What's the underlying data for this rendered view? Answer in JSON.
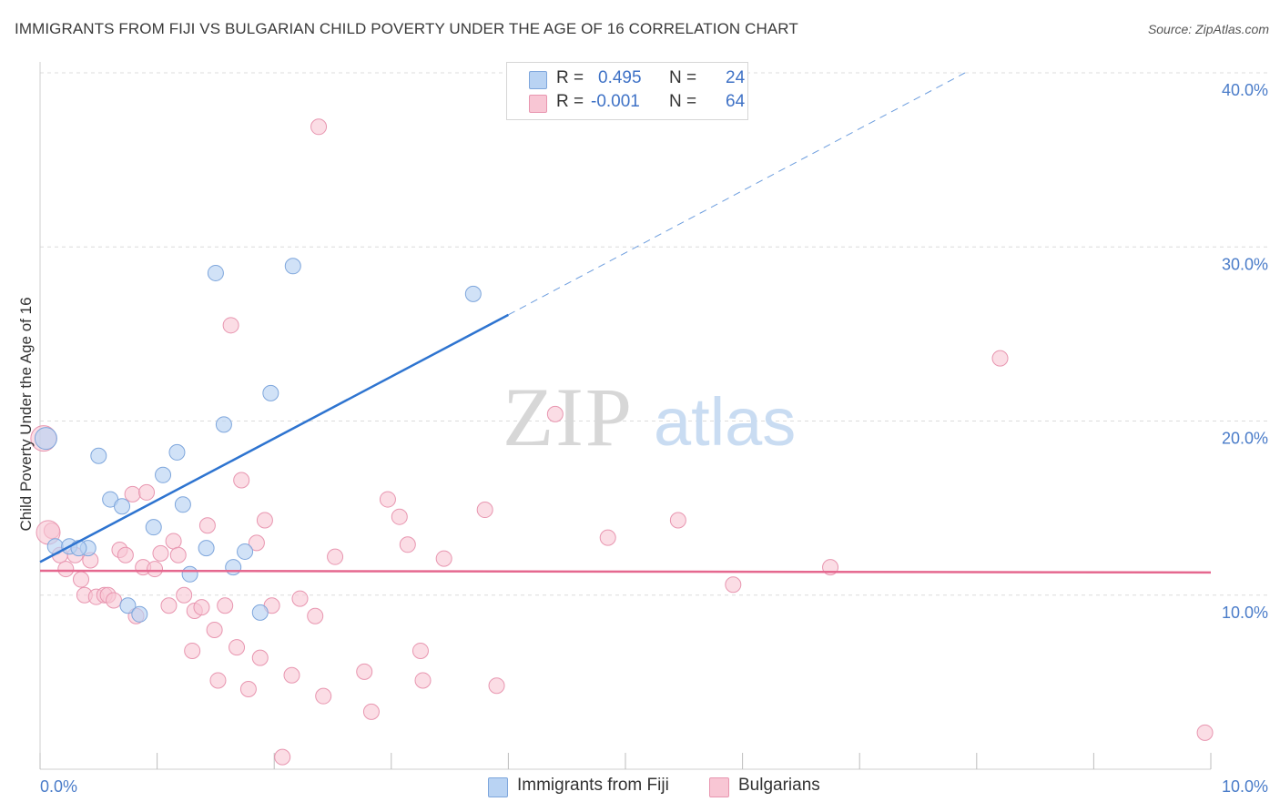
{
  "title": "IMMIGRANTS FROM FIJI VS BULGARIAN CHILD POVERTY UNDER THE AGE OF 16 CORRELATION CHART",
  "source": "Source: ZipAtlas.com",
  "watermark": {
    "zip": "ZIP",
    "atlas": "atlas"
  },
  "legend": {
    "fiji": {
      "r_label": "R =",
      "r_value": "0.495",
      "n_label": "N =",
      "n_value": "24"
    },
    "bulgarians": {
      "r_label": "R =",
      "r_value": "-0.001",
      "n_label": "N =",
      "n_value": "64"
    }
  },
  "bottom_legend": {
    "fiji": "Immigrants from Fiji",
    "bulgarians": "Bulgarians"
  },
  "colors": {
    "fiji_fill": "#b9d3f3",
    "fiji_stroke": "#7ea6dc",
    "fiji_line": "#2e74d0",
    "bulg_fill": "#f8c6d4",
    "bulg_stroke": "#e896b0",
    "bulg_line": "#e5688f",
    "grid": "#dcdcdc",
    "axis_text": "#4a7cc9"
  },
  "chart_data": {
    "type": "scatter",
    "title": "IMMIGRANTS FROM FIJI VS BULGARIAN CHILD POVERTY UNDER THE AGE OF 16 CORRELATION CHART",
    "xlabel": "",
    "ylabel": "Child Poverty Under the Age of 16",
    "xlim": [
      0,
      10
    ],
    "ylim": [
      0,
      40
    ],
    "x_tick_labels": [
      "0.0%",
      "10.0%"
    ],
    "y_ticks": [
      10,
      20,
      30,
      40
    ],
    "y_tick_labels": [
      "10.0%",
      "20.0%",
      "30.0%",
      "40.0%"
    ],
    "grid": true,
    "legend_position": "top-center",
    "series": [
      {
        "name": "Immigrants from Fiji",
        "points": [
          [
            0.05,
            19.0
          ],
          [
            0.13,
            12.8
          ],
          [
            0.25,
            12.8
          ],
          [
            0.41,
            12.7
          ],
          [
            0.5,
            18.0
          ],
          [
            0.6,
            15.5
          ],
          [
            0.7,
            15.1
          ],
          [
            0.75,
            9.4
          ],
          [
            0.85,
            8.9
          ],
          [
            0.97,
            13.9
          ],
          [
            1.05,
            16.9
          ],
          [
            1.17,
            18.2
          ],
          [
            1.22,
            15.2
          ],
          [
            1.28,
            11.2
          ],
          [
            1.42,
            12.7
          ],
          [
            1.5,
            28.5
          ],
          [
            1.57,
            19.8
          ],
          [
            1.65,
            11.6
          ],
          [
            1.75,
            12.5
          ],
          [
            1.88,
            9.0
          ],
          [
            1.97,
            21.6
          ],
          [
            2.16,
            28.9
          ],
          [
            3.7,
            27.3
          ],
          [
            0.33,
            12.7
          ]
        ],
        "trend": {
          "x0": 0.0,
          "y0": 11.9,
          "x1": 4.0,
          "y1": 26.1,
          "dashed_to": {
            "x": 7.9,
            "y": 40.0
          }
        }
      },
      {
        "name": "Bulgarians",
        "points": [
          [
            0.03,
            19.0
          ],
          [
            0.1,
            13.7
          ],
          [
            0.17,
            12.3
          ],
          [
            0.22,
            11.5
          ],
          [
            0.3,
            12.3
          ],
          [
            0.35,
            10.9
          ],
          [
            0.38,
            10.0
          ],
          [
            0.43,
            12.0
          ],
          [
            0.48,
            9.9
          ],
          [
            0.55,
            10.0
          ],
          [
            0.58,
            10.0
          ],
          [
            0.63,
            9.7
          ],
          [
            0.68,
            12.6
          ],
          [
            0.73,
            12.3
          ],
          [
            0.79,
            15.8
          ],
          [
            0.82,
            8.8
          ],
          [
            0.88,
            11.6
          ],
          [
            0.91,
            15.9
          ],
          [
            0.98,
            11.5
          ],
          [
            1.03,
            12.4
          ],
          [
            1.1,
            9.4
          ],
          [
            1.14,
            13.1
          ],
          [
            1.18,
            12.3
          ],
          [
            1.23,
            10.0
          ],
          [
            1.3,
            6.8
          ],
          [
            1.32,
            9.1
          ],
          [
            1.38,
            9.3
          ],
          [
            1.43,
            14.0
          ],
          [
            1.49,
            8.0
          ],
          [
            1.52,
            5.1
          ],
          [
            1.58,
            9.4
          ],
          [
            1.63,
            25.5
          ],
          [
            1.68,
            7.0
          ],
          [
            1.72,
            16.6
          ],
          [
            1.78,
            4.6
          ],
          [
            1.85,
            13.0
          ],
          [
            1.88,
            6.4
          ],
          [
            1.92,
            14.3
          ],
          [
            1.98,
            9.4
          ],
          [
            2.07,
            0.7
          ],
          [
            2.15,
            5.4
          ],
          [
            2.22,
            9.8
          ],
          [
            2.35,
            8.8
          ],
          [
            2.38,
            36.9
          ],
          [
            2.42,
            4.2
          ],
          [
            2.52,
            12.2
          ],
          [
            2.77,
            5.6
          ],
          [
            2.83,
            3.3
          ],
          [
            2.97,
            15.5
          ],
          [
            3.07,
            14.5
          ],
          [
            3.14,
            12.9
          ],
          [
            3.25,
            6.8
          ],
          [
            3.27,
            5.1
          ],
          [
            3.45,
            12.1
          ],
          [
            3.8,
            14.9
          ],
          [
            3.9,
            4.8
          ],
          [
            4.4,
            20.4
          ],
          [
            4.85,
            13.3
          ],
          [
            5.45,
            14.3
          ],
          [
            5.92,
            10.6
          ],
          [
            6.75,
            11.6
          ],
          [
            8.2,
            23.6
          ],
          [
            9.95,
            2.1
          ],
          [
            0.07,
            13.6
          ]
        ],
        "trend": {
          "x0": 0.0,
          "y0": 11.4,
          "x1": 10.0,
          "y1": 11.3
        }
      }
    ]
  }
}
